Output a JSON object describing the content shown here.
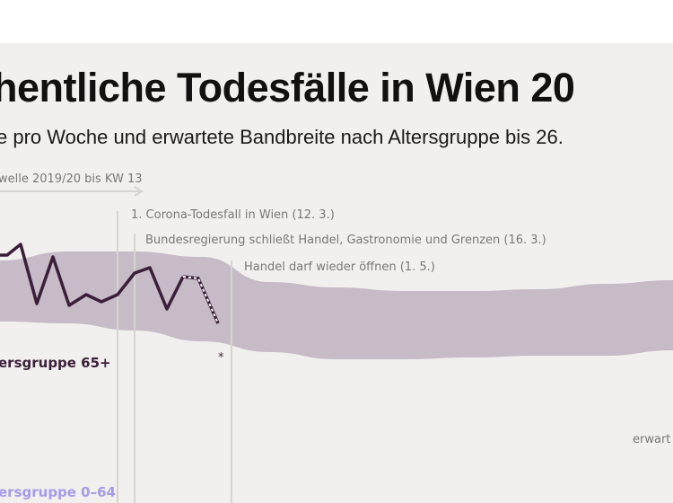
{
  "title": "hentliche Todesfälle in Wien 20",
  "subtitle": "e pro Woche und erwartete Bandbreite nach Altersgruppe bis 26.",
  "chart_data": {
    "type": "line",
    "title": "hentliche Todesfälle in Wien 20",
    "subtitle": "e pro Woche und erwartete Bandbreite nach Altersgruppe bis 26.",
    "annotations": {
      "flu_wave": "welle 2019/20 bis KW 13",
      "first_death": "1. Corona-Todesfall in Wien (12. 3.)",
      "lockdown": "Bundesregierung schließt Handel, Gastronomie und Grenzen (16. 3.)",
      "reopen": "Handel darf wieder öffnen (1. 5.)",
      "expected": "erwart",
      "asterisk": "*"
    },
    "series": [
      {
        "name": "ersgruppe 65+",
        "color": "#3b1f3a",
        "values_relative": [
          78,
          78,
          84,
          51,
          77,
          50,
          56,
          52,
          56,
          68,
          71,
          48,
          66
        ],
        "provisional_values_relative": [
          66,
          65,
          40
        ]
      },
      {
        "name": "ersgruppe 0–64",
        "color": "#a59be6"
      }
    ],
    "expected_band": {
      "color": "#c6bbc6",
      "upper_relative": [
        75,
        80,
        80,
        77,
        63,
        60,
        58,
        58,
        59,
        62,
        64
      ],
      "lower_relative": [
        41,
        40,
        36,
        30,
        24,
        20,
        20,
        21,
        22,
        22,
        25
      ]
    },
    "axes_visible": false,
    "grid": false
  }
}
